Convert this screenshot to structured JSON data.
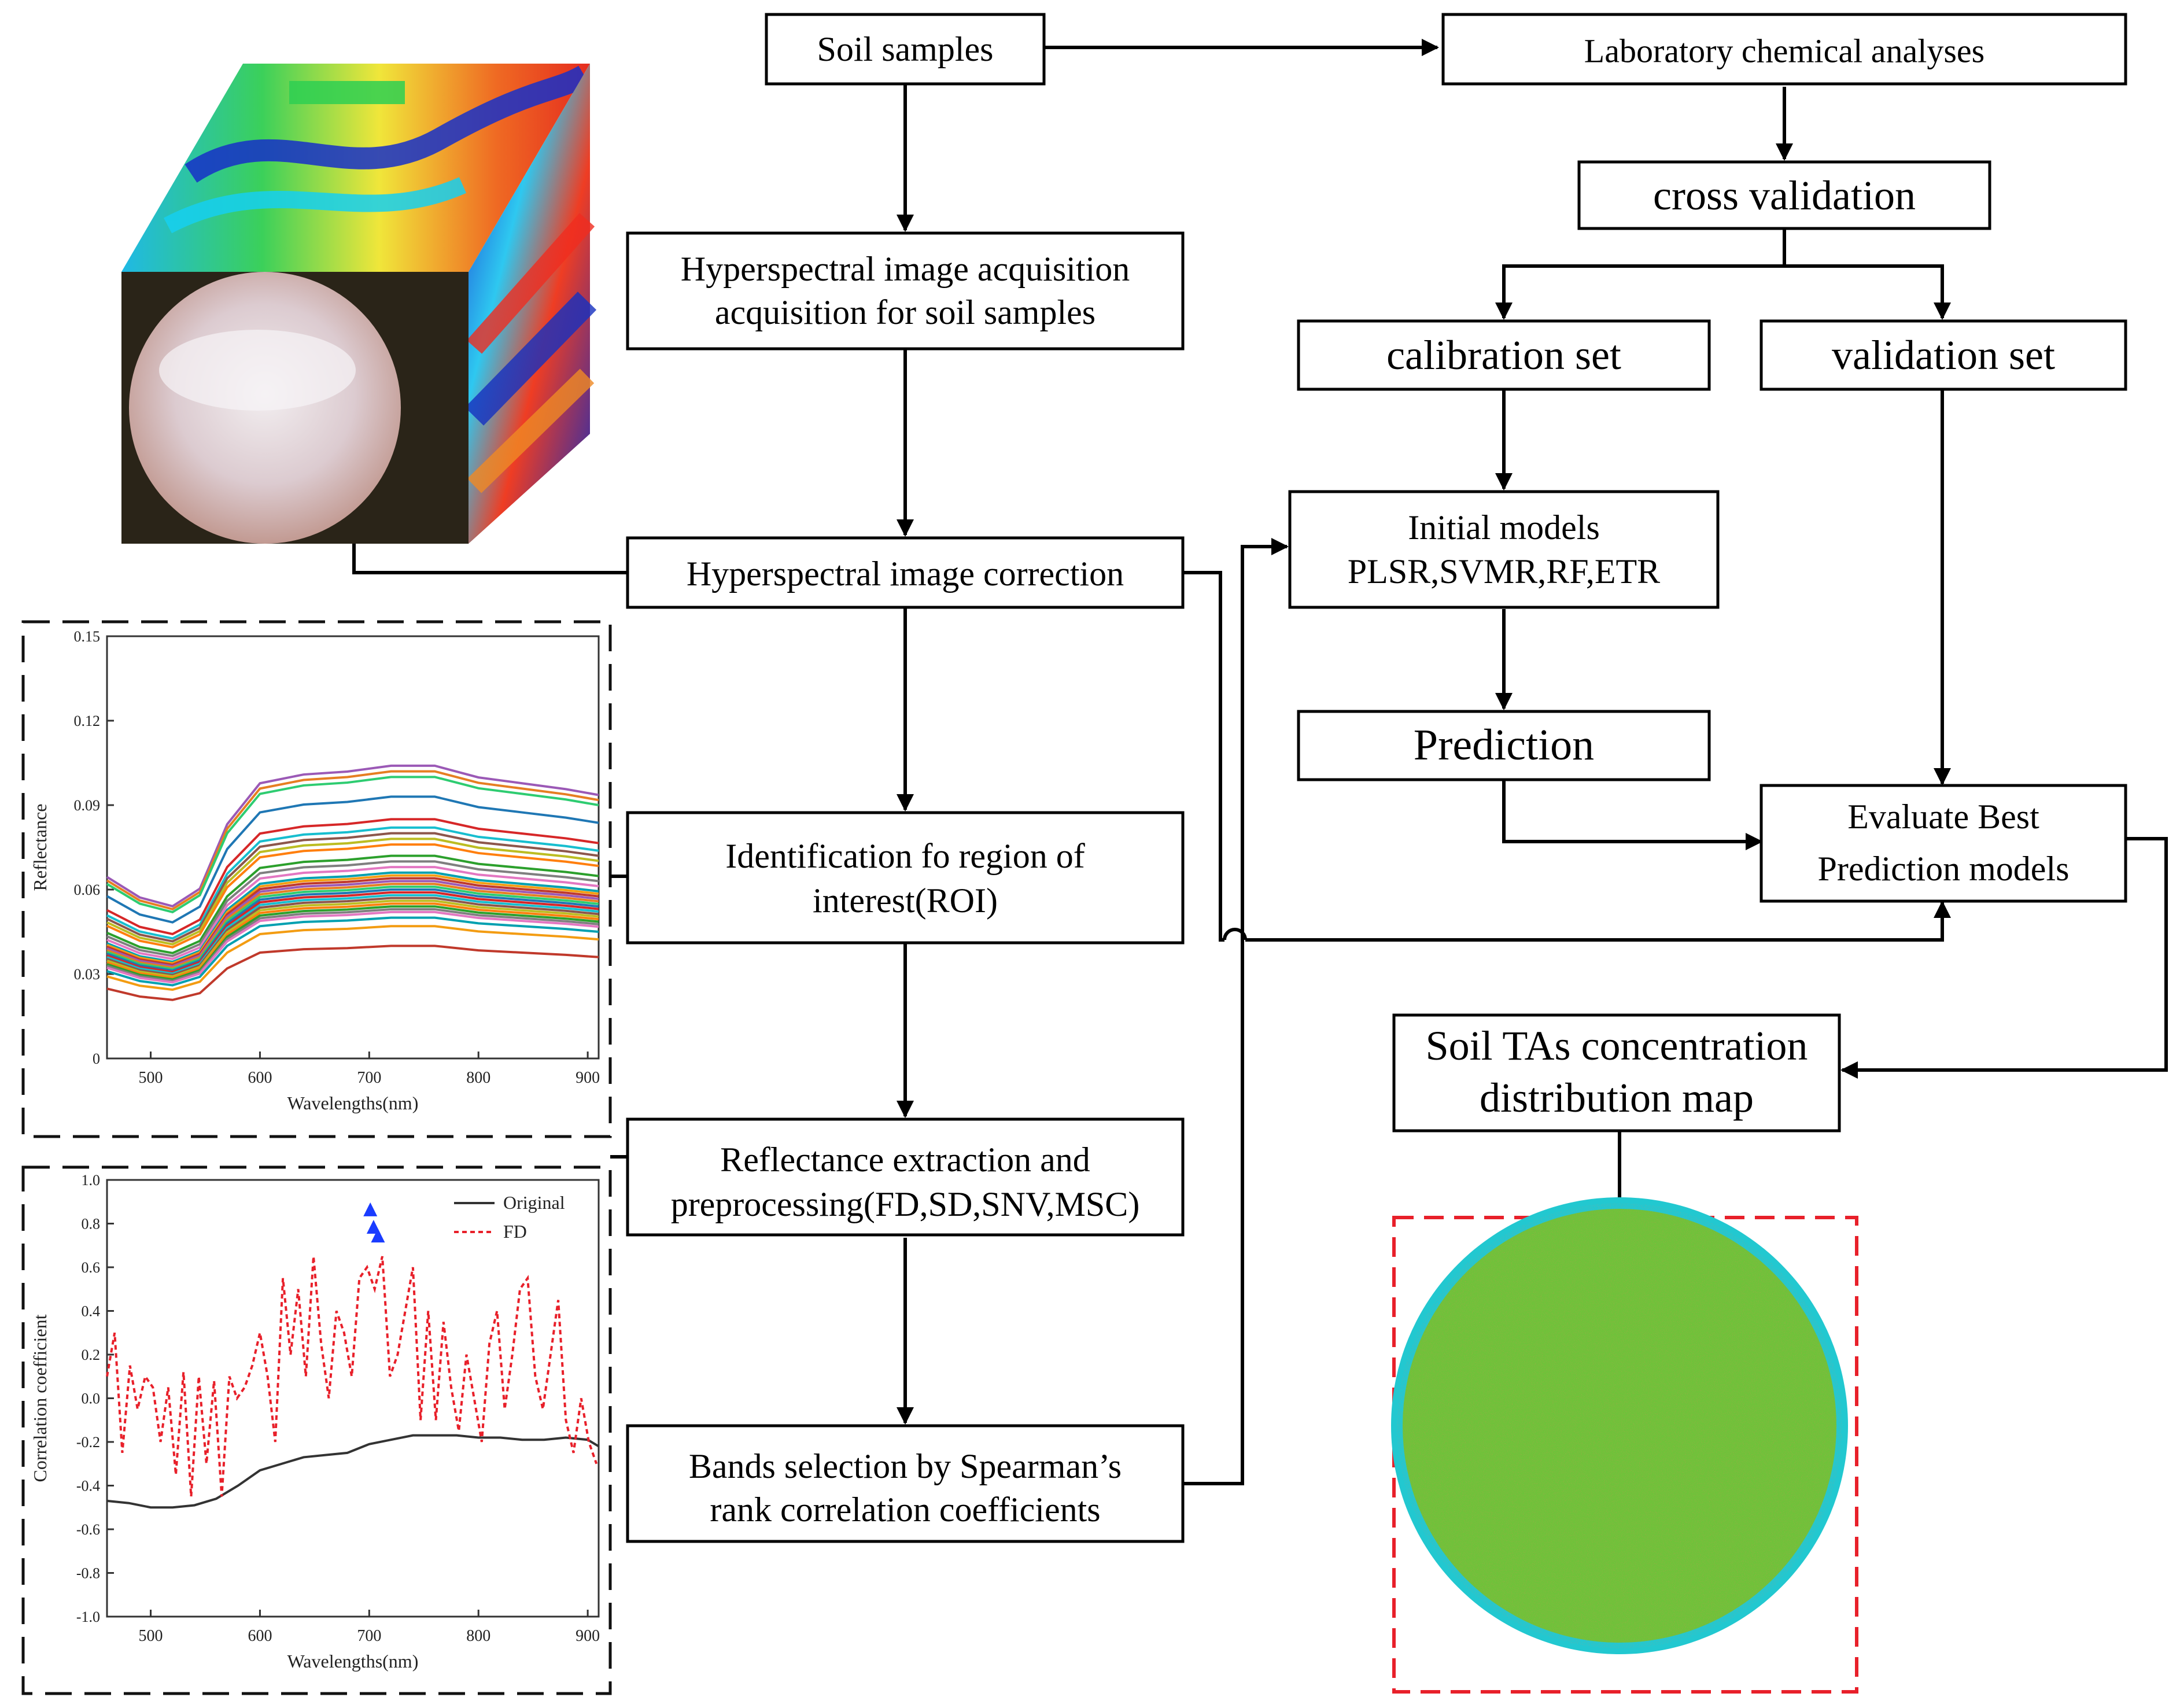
{
  "flow": {
    "soil_samples": "Soil samples",
    "lab_analyses": "Laboratory chemical analyses",
    "cross_validation": "cross validation",
    "calibration_set": "calibration set",
    "validation_set": "validation  set",
    "hsi_acquisition_l1": "Hyperspectral image acquisition",
    "hsi_acquisition_l2": "acquisition for soil samples",
    "hsi_correction": "Hyperspectral image correction",
    "initial_models_l1": "Initial models",
    "initial_models_l2": "PLSR,SVMR,RF,ETR",
    "prediction": "Prediction",
    "evaluate_l1": "Evaluate Best",
    "evaluate_l2": "Prediction models",
    "roi_l1": "Identification fo region of",
    "roi_l2": "interest(ROI)",
    "reflectance_l1": "Reflectance extraction and",
    "reflectance_l2": "preprocessing(FD,SD,SNV,MSC)",
    "bands_l1": "Bands selection by Spearman’s",
    "bands_l2": "rank correlation coefficients",
    "map_l1": "Soil TAs concentration",
    "map_l2": "distribution map"
  },
  "colors": {
    "line": "#000000",
    "dash_red": "#e8202a",
    "fd_series": "#e8202a",
    "original_series": "#333333",
    "marker": "#1a3cff",
    "map_green": "#6fc23a",
    "map_cyan": "#22c8d0"
  },
  "chart_data": [
    {
      "type": "line",
      "title": "",
      "xlabel": "Wavelengths(nm)",
      "ylabel": "Reflectance",
      "xlim": [
        460,
        910
      ],
      "ylim": [
        0,
        0.15
      ],
      "xticks": [
        "500",
        "600",
        "700",
        "800",
        "900"
      ],
      "yticks": [
        "0",
        "0.03",
        "0.06",
        "0.09",
        "0.12",
        "0.15"
      ],
      "x": [
        460,
        490,
        520,
        545,
        570,
        600,
        640,
        680,
        720,
        760,
        800,
        840,
        880,
        910
      ],
      "series_shape": [
        0.62,
        0.55,
        0.52,
        0.58,
        0.8,
        0.94,
        0.97,
        0.98,
        1.0,
        1.0,
        0.96,
        0.94,
        0.92,
        0.9
      ],
      "series_levels": [
        0.104,
        0.102,
        0.1,
        0.093,
        0.085,
        0.082,
        0.08,
        0.078,
        0.076,
        0.072,
        0.07,
        0.068,
        0.066,
        0.065,
        0.064,
        0.063,
        0.062,
        0.061,
        0.06,
        0.059,
        0.058,
        0.057,
        0.056,
        0.055,
        0.054,
        0.053,
        0.052,
        0.05,
        0.047,
        0.04
      ]
    },
    {
      "type": "line",
      "title": "",
      "xlabel": "Wavelengths(nm)",
      "ylabel": "Correlation coefficient",
      "xlim": [
        460,
        910
      ],
      "ylim": [
        -1.0,
        1.0
      ],
      "xticks": [
        "500",
        "600",
        "700",
        "800",
        "900"
      ],
      "yticks": [
        "-1.0",
        "-0.8",
        "-0.6",
        "-0.4",
        "-0.2",
        "0.0",
        "0.2",
        "0.4",
        "0.6",
        "0.8",
        "1.0"
      ],
      "legend": [
        "Original",
        "FD"
      ],
      "legend_position": "top-right",
      "series": [
        {
          "name": "Original",
          "x": [
            460,
            480,
            500,
            520,
            540,
            560,
            580,
            600,
            620,
            640,
            660,
            680,
            700,
            720,
            740,
            760,
            780,
            800,
            820,
            840,
            860,
            880,
            900,
            910
          ],
          "values": [
            -0.47,
            -0.48,
            -0.5,
            -0.5,
            -0.49,
            -0.46,
            -0.4,
            -0.33,
            -0.3,
            -0.27,
            -0.26,
            -0.25,
            -0.21,
            -0.19,
            -0.17,
            -0.17,
            -0.17,
            -0.18,
            -0.18,
            -0.19,
            -0.19,
            -0.18,
            -0.19,
            -0.22
          ]
        },
        {
          "name": "FD",
          "x": [
            460,
            467,
            474,
            481,
            488,
            495,
            502,
            509,
            516,
            523,
            530,
            537,
            544,
            551,
            558,
            565,
            572,
            579,
            586,
            593,
            600,
            607,
            614,
            621,
            628,
            635,
            642,
            649,
            656,
            663,
            670,
            677,
            684,
            691,
            698,
            705,
            712,
            719,
            726,
            733,
            740,
            747,
            754,
            761,
            768,
            775,
            782,
            789,
            796,
            803,
            810,
            817,
            824,
            831,
            838,
            845,
            852,
            859,
            866,
            873,
            880,
            887,
            894,
            901,
            908
          ],
          "values": [
            0.1,
            0.3,
            -0.25,
            0.15,
            -0.05,
            0.1,
            0.05,
            -0.2,
            0.05,
            -0.35,
            0.12,
            -0.45,
            0.1,
            -0.3,
            0.08,
            -0.45,
            0.1,
            0.0,
            0.05,
            0.15,
            0.3,
            0.1,
            -0.2,
            0.55,
            0.2,
            0.5,
            0.1,
            0.65,
            0.25,
            0.0,
            0.4,
            0.3,
            0.1,
            0.55,
            0.6,
            0.5,
            0.65,
            0.1,
            0.2,
            0.4,
            0.6,
            -0.1,
            0.4,
            -0.1,
            0.35,
            0.05,
            -0.15,
            0.2,
            0.0,
            -0.2,
            0.25,
            0.4,
            -0.05,
            0.2,
            0.5,
            0.55,
            0.1,
            -0.05,
            0.2,
            0.45,
            -0.1,
            -0.25,
            0.0,
            -0.2,
            -0.3
          ]
        }
      ],
      "markers": [
        {
          "x": 701,
          "y": 0.86
        },
        {
          "x": 704,
          "y": 0.78
        },
        {
          "x": 708,
          "y": 0.74
        }
      ]
    }
  ]
}
